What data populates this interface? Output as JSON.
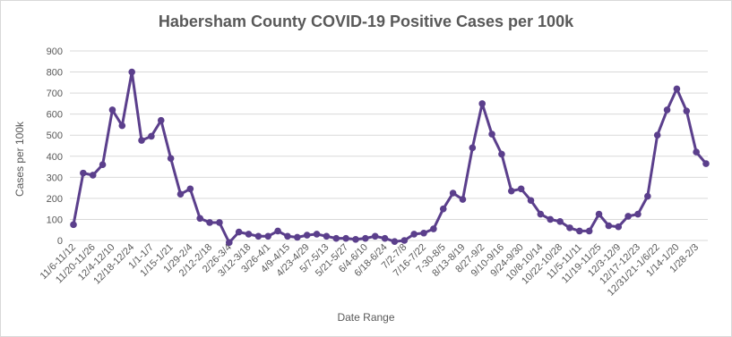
{
  "chart_data": {
    "type": "line",
    "title": "Habersham County COVID-19 Positive Cases per 100k",
    "xlabel": "Date Range",
    "ylabel": "Cases per 100k",
    "ylim": [
      0,
      900
    ],
    "yticks": [
      0,
      100,
      200,
      300,
      400,
      500,
      600,
      700,
      800,
      900
    ],
    "grid": true,
    "line_color": "#5b3f8c",
    "x_tick_labels": [
      "11/6-11/12",
      "11/20-11/26",
      "12/4-12/10",
      "12/18-12/24",
      "1/1-1/7",
      "1/15-1/21",
      "1/29-2/4",
      "2/12-2/18",
      "2/26-3/4",
      "3/12-3/18",
      "3/26-4/1",
      "4/9-4/15",
      "4/23-4/29",
      "5/7-5/13",
      "5/21-5/27",
      "6/4-6/10",
      "6/18-6/24",
      "7/2-7/8",
      "7/16-7/22",
      "7-30-8/5",
      "8/13-8/19",
      "8/27-9/2",
      "9/10-9/16",
      "9/24-9/30",
      "10/8-10/14",
      "10/22-10/28",
      "11/5-11/11",
      "11/19-11/25",
      "12/3-12/9",
      "12/17-12/23",
      "12/31/21-1/6/22",
      "1/14-1/20",
      "1/28-2/3"
    ],
    "values": [
      75,
      320,
      310,
      360,
      620,
      545,
      800,
      475,
      495,
      570,
      390,
      220,
      245,
      105,
      85,
      85,
      -10,
      40,
      30,
      20,
      20,
      45,
      20,
      15,
      25,
      30,
      20,
      10,
      10,
      5,
      10,
      20,
      10,
      -5,
      0,
      30,
      35,
      55,
      150,
      225,
      195,
      440,
      650,
      505,
      410,
      235,
      245,
      190,
      125,
      100,
      90,
      60,
      45,
      45,
      125,
      70,
      65,
      115,
      125,
      210,
      500,
      620,
      720,
      615,
      420,
      365
    ]
  }
}
